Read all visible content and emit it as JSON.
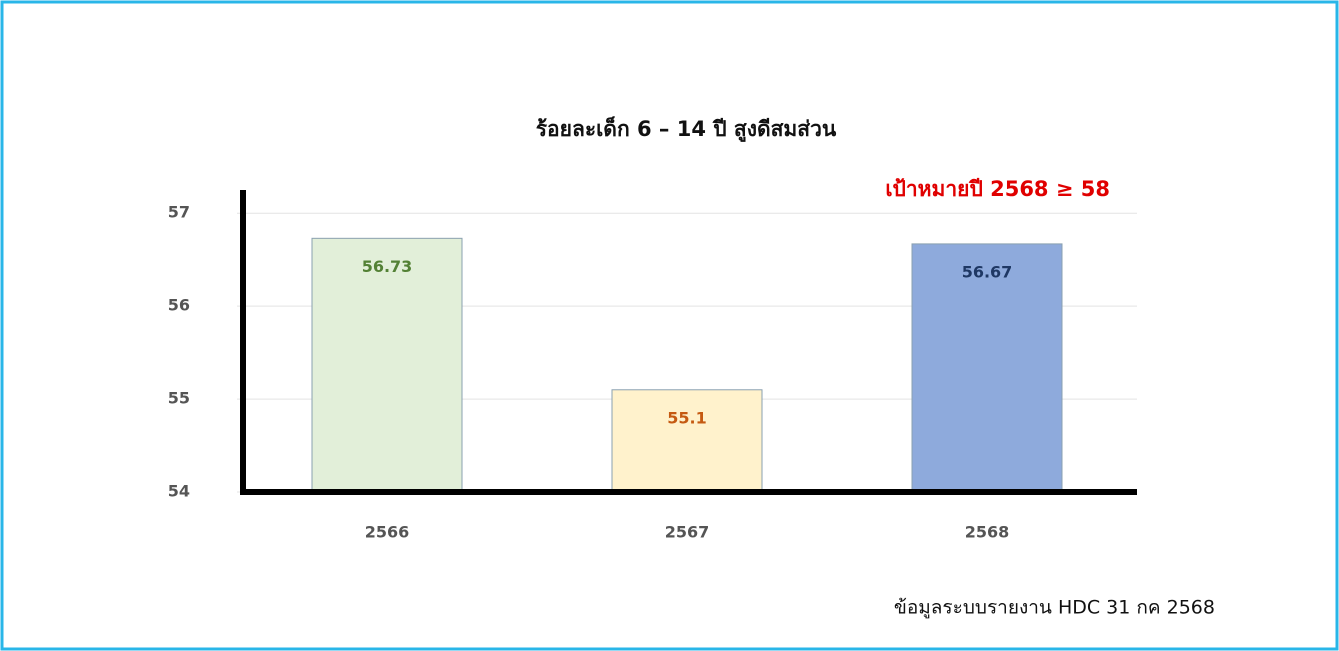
{
  "chart_data": {
    "type": "bar",
    "title": "ร้อยละเด็ก 6 – 14 ปี สูงดีสมส่วน",
    "annotation": "เป้าหมายปี 2568 ≥ 58",
    "source": "ข้อมูลระบบรายงาน HDC  31 กค 2568",
    "categories": [
      "2566",
      "2567",
      "2568"
    ],
    "values": [
      56.73,
      55.1,
      56.67
    ],
    "colors": [
      "#e2efd9",
      "#fff2cc",
      "#8eaadc"
    ],
    "label_colors": [
      "#538135",
      "#c55a11",
      "#1f3864"
    ],
    "ylim": [
      54,
      57.25
    ],
    "yticks": [
      54,
      55,
      56,
      57
    ],
    "grid": true
  }
}
